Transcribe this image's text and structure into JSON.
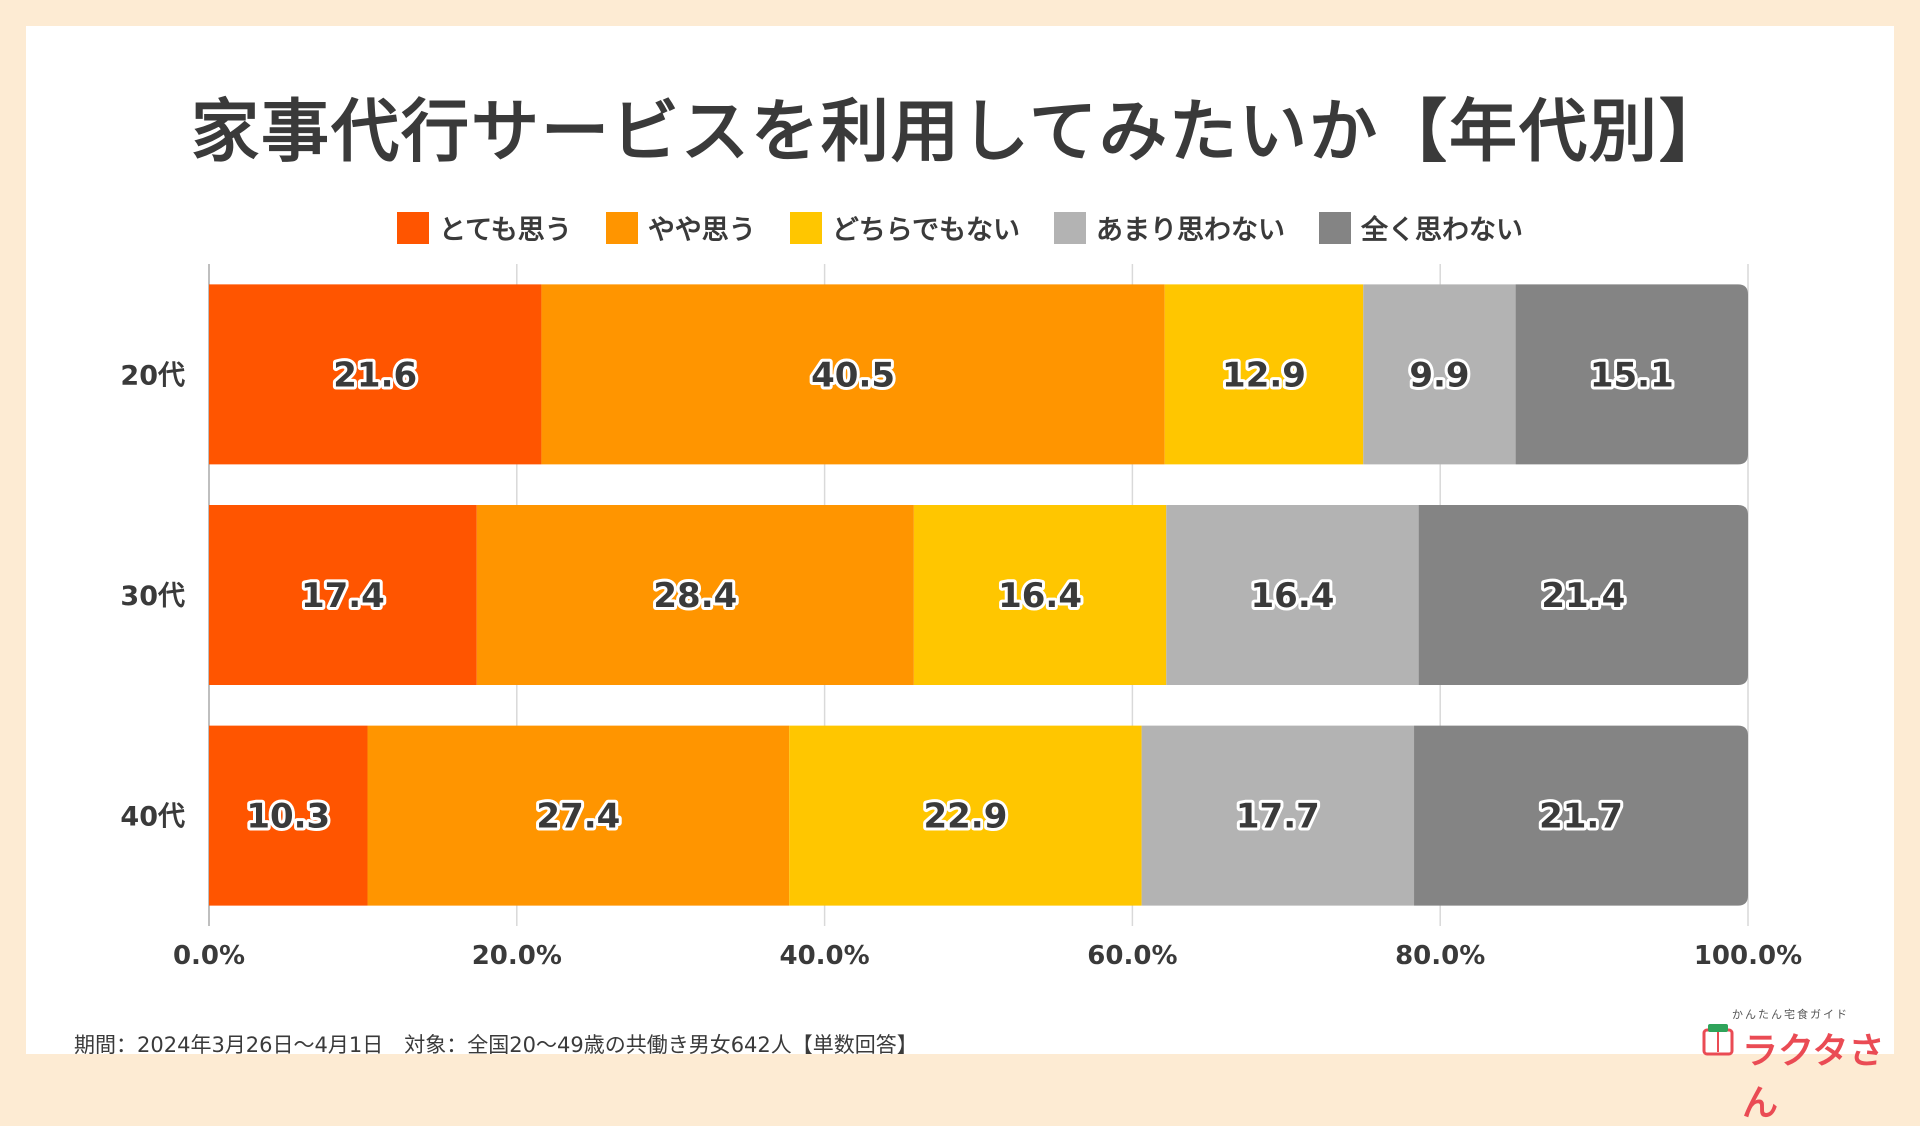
{
  "chart_data": {
    "type": "bar",
    "orientation": "horizontal",
    "stacked": true,
    "title": "家事代行サービスを利用してみたいか【年代別】",
    "categories": [
      "20代",
      "30代",
      "40代"
    ],
    "series": [
      {
        "name": "とても思う",
        "color": "#ff5500",
        "values": [
          21.6,
          17.4,
          10.3
        ]
      },
      {
        "name": "やや思う",
        "color": "#ff9500",
        "values": [
          40.5,
          28.4,
          27.4
        ]
      },
      {
        "name": "どちらでもない",
        "color": "#ffc600",
        "values": [
          12.9,
          16.4,
          22.9
        ]
      },
      {
        "name": "あまり思わない",
        "color": "#b3b3b3",
        "values": [
          9.9,
          16.4,
          17.7
        ]
      },
      {
        "name": "全く思わない",
        "color": "#848484",
        "values": [
          15.1,
          21.4,
          21.7
        ]
      }
    ],
    "xlim": [
      0,
      100
    ],
    "x_ticks": [
      "0.0%",
      "20.0%",
      "40.0%",
      "60.0%",
      "80.0%",
      "100.0%"
    ],
    "xlabel": "",
    "ylabel": "",
    "grid": true,
    "legend_position": "top"
  },
  "footnote": "期間：2024年3月26日〜4月1日　対象：全国20〜49歳の共働き男女642人【単数回答】",
  "logo": {
    "subtitle": "かんたん宅食ガイド",
    "name": "ラクタさん",
    "icon": "bento-box-icon",
    "color": "#ea4b54"
  }
}
